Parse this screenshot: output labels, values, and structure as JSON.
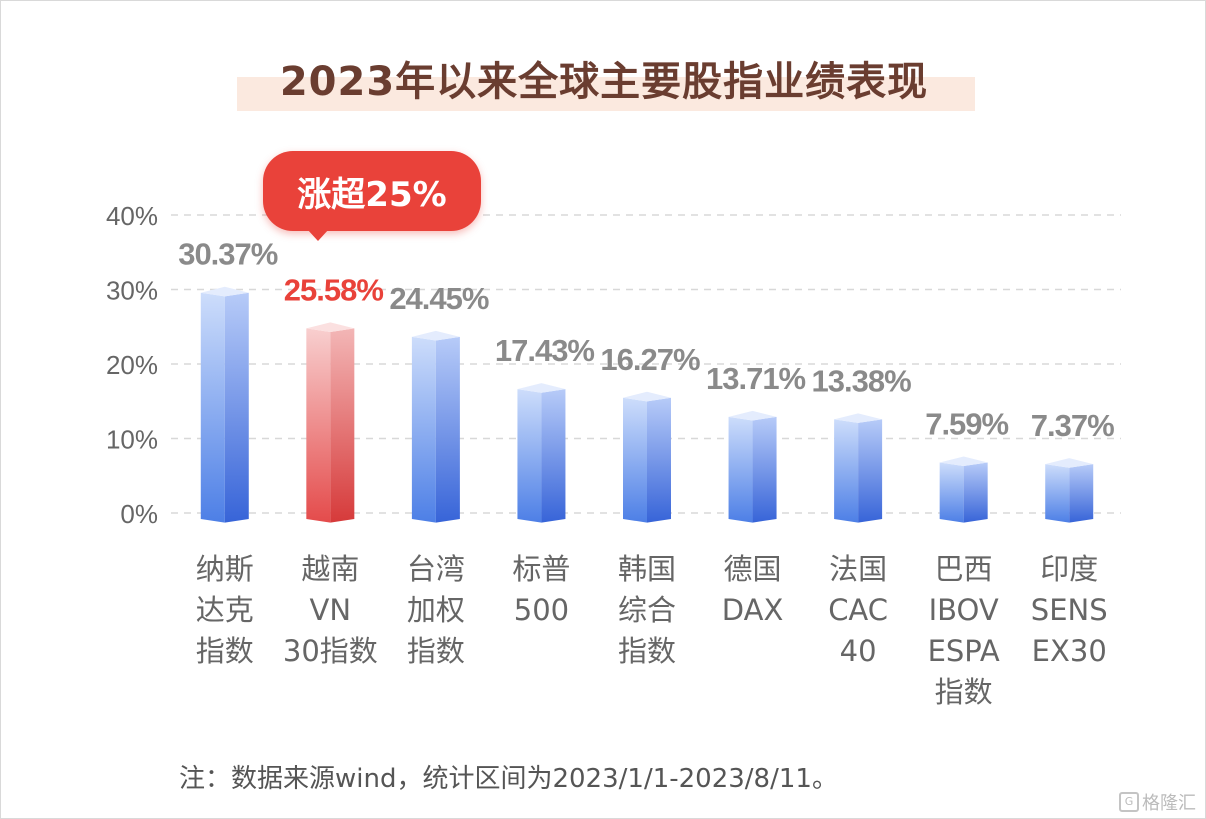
{
  "title": "2023年以来全球主要股指业绩表现",
  "callout": "涨超25%",
  "footnote": "注：数据来源wind，统计区间为2023/1/1-2023/8/11。",
  "watermark": {
    "text": "格隆汇",
    "icon": "g-logo-icon"
  },
  "colors": {
    "highlight": "#e9423a",
    "bar_light": "#cad8fb",
    "bar_dark": "#3f6fe3",
    "highlight_light": "#f9cccc",
    "highlight_dark": "#e04646",
    "value_label": "#8a8a8a",
    "axis_text": "#666666",
    "title_band": "#fbe9df"
  },
  "chart_data": {
    "type": "bar",
    "style": "3d-cylinder",
    "categories": [
      [
        "纳斯",
        "达克",
        "指数"
      ],
      [
        "越南",
        "VN",
        "30指数"
      ],
      [
        "台湾",
        "加权",
        "指数"
      ],
      [
        "标普",
        "500"
      ],
      [
        "韩国",
        "综合",
        "指数"
      ],
      [
        "德国",
        "DAX"
      ],
      [
        "法国",
        "CAC",
        "40"
      ],
      [
        "巴西",
        "IBOV",
        "ESPA",
        "指数"
      ],
      [
        "印度",
        "SENS",
        "EX30"
      ]
    ],
    "values": [
      30.37,
      25.58,
      24.45,
      17.43,
      16.27,
      13.71,
      13.38,
      7.59,
      7.37
    ],
    "value_labels": [
      "30.37%",
      "25.58%",
      "24.45%",
      "17.43%",
      "16.27%",
      "13.71%",
      "13.38%",
      "7.59%",
      "7.37%"
    ],
    "highlight_index": 1,
    "ylim": [
      0,
      40
    ],
    "yticks": [
      "0%",
      "10%",
      "20%",
      "30%",
      "40%"
    ],
    "grid": true,
    "title": "2023年以来全球主要股指业绩表现",
    "xlabel": "",
    "ylabel": ""
  }
}
